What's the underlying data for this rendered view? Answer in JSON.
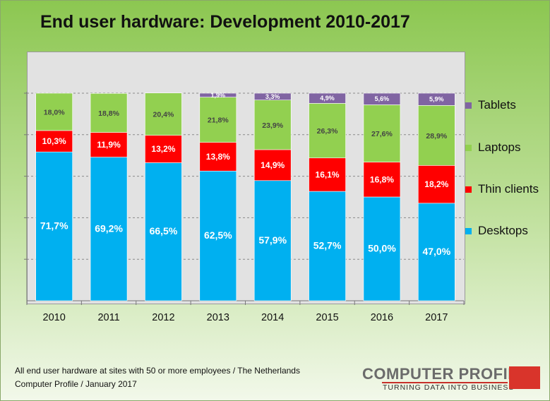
{
  "title": "End user hardware: Development 2010-2017",
  "footnote": {
    "line1": "All end user hardware at sites with 50 or more employees / The Netherlands",
    "line2": "Computer Profile / January 2017"
  },
  "logo": {
    "name": "COMPUTER PROFILE",
    "tagline": "TURNING DATA INTO BUSINESS",
    "mark_color": "#d9342b"
  },
  "chart_data": {
    "type": "bar",
    "stacked": true,
    "categories": [
      "2010",
      "2011",
      "2012",
      "2013",
      "2014",
      "2015",
      "2016",
      "2017"
    ],
    "ylim": [
      0,
      100
    ],
    "grid": true,
    "legend_position": "right",
    "series": [
      {
        "name": "Desktops",
        "color": "#00b0f0",
        "values": [
          71.7,
          69.2,
          66.5,
          62.5,
          57.9,
          52.7,
          50.0,
          47.0
        ],
        "labels": [
          "71,7%",
          "69,2%",
          "66,5%",
          "62,5%",
          "57,9%",
          "52,7%",
          "50,0%",
          "47,0%"
        ]
      },
      {
        "name": "Thin clients",
        "color": "#ff0000",
        "values": [
          10.3,
          11.9,
          13.2,
          13.8,
          14.9,
          16.1,
          16.8,
          18.2
        ],
        "labels": [
          "10,3%",
          "11,9%",
          "13,2%",
          "13,8%",
          "14,9%",
          "16,1%",
          "16,8%",
          "18,2%"
        ]
      },
      {
        "name": "Laptops",
        "color": "#92d050",
        "values": [
          18.0,
          18.8,
          20.4,
          21.8,
          23.9,
          26.3,
          27.6,
          28.9
        ],
        "labels": [
          "18,0%",
          "18,8%",
          "20,4%",
          "21,8%",
          "23,9%",
          "26,3%",
          "27,6%",
          "28,9%"
        ]
      },
      {
        "name": "Tablets",
        "color": "#8064a2",
        "values": [
          0,
          0,
          0,
          1.9,
          3.3,
          4.9,
          5.6,
          5.9
        ],
        "labels": [
          "",
          "",
          "",
          "1,9%",
          "3,3%",
          "4,9%",
          "5,6%",
          "5,9%"
        ]
      }
    ],
    "legend_order": [
      "Tablets",
      "Laptops",
      "Thin clients",
      "Desktops"
    ]
  }
}
